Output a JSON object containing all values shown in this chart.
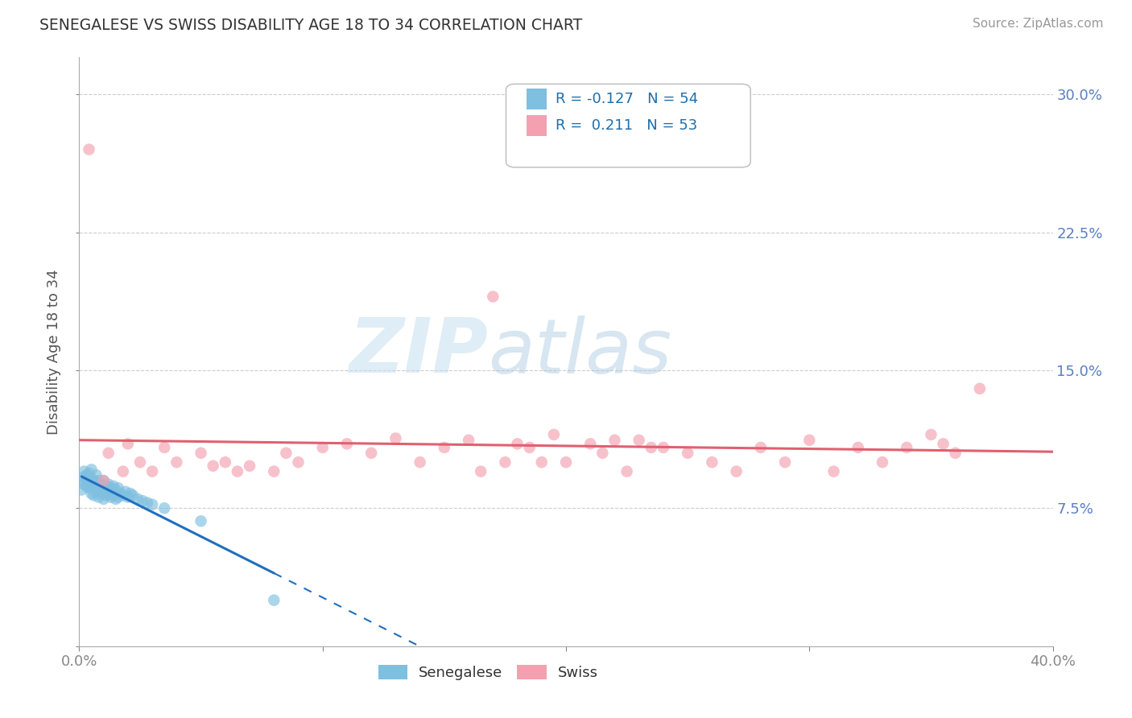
{
  "title": "SENEGALESE VS SWISS DISABILITY AGE 18 TO 34 CORRELATION CHART",
  "source": "Source: ZipAtlas.com",
  "ylabel": "Disability Age 18 to 34",
  "xlim": [
    0.0,
    0.4
  ],
  "ylim": [
    0.0,
    0.32
  ],
  "xticks": [
    0.0,
    0.1,
    0.2,
    0.3,
    0.4
  ],
  "xticklabels": [
    "0.0%",
    "",
    "",
    "",
    "40.0%"
  ],
  "yticks": [
    0.0,
    0.075,
    0.15,
    0.225,
    0.3
  ],
  "yticklabels_right": [
    "",
    "7.5%",
    "15.0%",
    "22.5%",
    "30.0%"
  ],
  "legend_r1": "R = -0.127",
  "legend_n1": "N = 54",
  "legend_r2": "R =  0.211",
  "legend_n2": "N = 53",
  "senegalese_color": "#7fbfdf",
  "swiss_color": "#f4a0b0",
  "trend_senegalese_color": "#1f6fbf",
  "trend_swiss_color": "#e06070",
  "grid_color": "#cccccc",
  "background_color": "#ffffff",
  "watermark_zip": "ZIP",
  "watermark_atlas": "atlas",
  "senegalese_x": [
    0.001,
    0.001,
    0.002,
    0.002,
    0.002,
    0.003,
    0.003,
    0.003,
    0.004,
    0.004,
    0.004,
    0.005,
    0.005,
    0.005,
    0.005,
    0.006,
    0.006,
    0.006,
    0.007,
    0.007,
    0.007,
    0.008,
    0.008,
    0.008,
    0.009,
    0.009,
    0.01,
    0.01,
    0.01,
    0.011,
    0.011,
    0.012,
    0.012,
    0.013,
    0.013,
    0.014,
    0.014,
    0.015,
    0.015,
    0.016,
    0.016,
    0.017,
    0.018,
    0.019,
    0.02,
    0.021,
    0.022,
    0.024,
    0.026,
    0.028,
    0.03,
    0.035,
    0.05,
    0.08
  ],
  "senegalese_y": [
    0.09,
    0.085,
    0.092,
    0.088,
    0.095,
    0.087,
    0.091,
    0.093,
    0.086,
    0.089,
    0.094,
    0.083,
    0.088,
    0.091,
    0.096,
    0.082,
    0.087,
    0.09,
    0.084,
    0.089,
    0.093,
    0.081,
    0.086,
    0.09,
    0.083,
    0.088,
    0.08,
    0.085,
    0.09,
    0.082,
    0.087,
    0.083,
    0.088,
    0.081,
    0.086,
    0.082,
    0.087,
    0.08,
    0.085,
    0.081,
    0.086,
    0.083,
    0.082,
    0.084,
    0.081,
    0.083,
    0.082,
    0.08,
    0.079,
    0.078,
    0.077,
    0.075,
    0.068,
    0.025
  ],
  "swiss_x": [
    0.004,
    0.01,
    0.012,
    0.018,
    0.02,
    0.025,
    0.03,
    0.035,
    0.04,
    0.05,
    0.055,
    0.06,
    0.065,
    0.07,
    0.08,
    0.085,
    0.09,
    0.1,
    0.11,
    0.12,
    0.13,
    0.14,
    0.15,
    0.16,
    0.165,
    0.17,
    0.175,
    0.18,
    0.185,
    0.19,
    0.195,
    0.2,
    0.21,
    0.215,
    0.22,
    0.225,
    0.23,
    0.235,
    0.24,
    0.25,
    0.26,
    0.27,
    0.28,
    0.29,
    0.3,
    0.31,
    0.32,
    0.33,
    0.34,
    0.35,
    0.355,
    0.36,
    0.37
  ],
  "swiss_y": [
    0.27,
    0.09,
    0.105,
    0.095,
    0.11,
    0.1,
    0.095,
    0.108,
    0.1,
    0.105,
    0.098,
    0.1,
    0.095,
    0.098,
    0.095,
    0.105,
    0.1,
    0.108,
    0.11,
    0.105,
    0.113,
    0.1,
    0.108,
    0.112,
    0.095,
    0.19,
    0.1,
    0.11,
    0.108,
    0.1,
    0.115,
    0.1,
    0.11,
    0.105,
    0.112,
    0.095,
    0.112,
    0.108,
    0.108,
    0.105,
    0.1,
    0.095,
    0.108,
    0.1,
    0.112,
    0.095,
    0.108,
    0.1,
    0.108,
    0.115,
    0.11,
    0.105,
    0.14
  ]
}
